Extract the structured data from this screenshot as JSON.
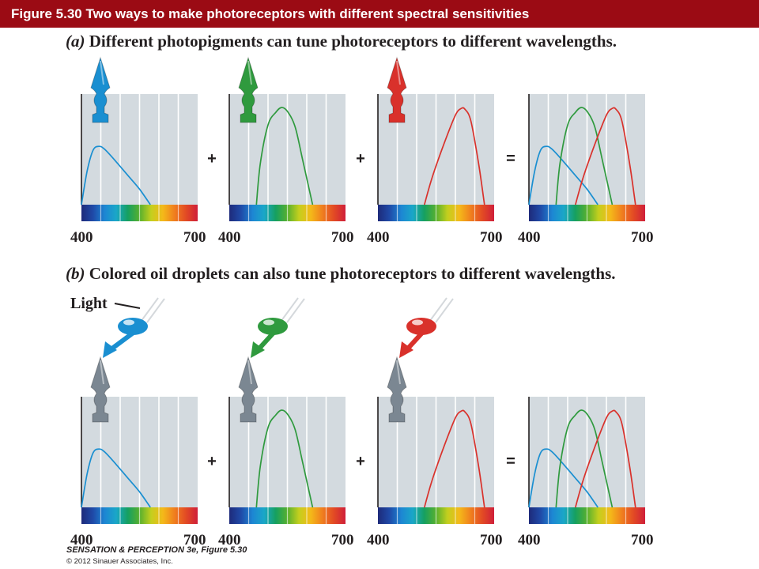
{
  "header": {
    "title": "Figure 5.30  Two ways to make photoreceptors with different spectral sensitivities"
  },
  "part_a": {
    "letter": "(a)",
    "caption": "Different photopigments can tune photoreceptors to different wavelengths."
  },
  "part_b": {
    "letter": "(b)",
    "caption": "Colored oil droplets can also tune photoreceptors to different wavelengths.",
    "light_label": "Light"
  },
  "operators": [
    "+",
    "+",
    "="
  ],
  "axis": {
    "min_label": "400",
    "max_label": "700"
  },
  "colors": {
    "title_bar": "#9b0b14",
    "panel_bg": "#d3dadf",
    "blue": "#1a8fd1",
    "green": "#2f9a3e",
    "red": "#d9312b",
    "gray_receptor": "#7b8792"
  },
  "chart_data": [
    {
      "type": "line",
      "xlim": [
        400,
        700
      ],
      "ylim": [
        0,
        1
      ],
      "series": [
        {
          "values": [
            [
              400,
              0
            ],
            [
              415,
              0.35
            ],
            [
              430,
              0.56
            ],
            [
              445,
              0.6
            ],
            [
              460,
              0.57
            ],
            [
              490,
              0.44
            ],
            [
              520,
              0.3
            ],
            [
              550,
              0.16
            ],
            [
              578,
              0
            ]
          ]
        }
      ]
    },
    {
      "type": "line",
      "xlim": [
        400,
        700
      ],
      "ylim": [
        0,
        1
      ],
      "series": [
        {
          "values": [
            [
              470,
              0
            ],
            [
              480,
              0.42
            ],
            [
              500,
              0.82
            ],
            [
              520,
              0.95
            ],
            [
              535,
              1
            ],
            [
              550,
              0.96
            ],
            [
              570,
              0.8
            ],
            [
              590,
              0.45
            ],
            [
              615,
              0
            ]
          ]
        }
      ]
    },
    {
      "type": "line",
      "xlim": [
        400,
        700
      ],
      "ylim": [
        0,
        1
      ],
      "series": [
        {
          "values": [
            [
              520,
              0
            ],
            [
              540,
              0.28
            ],
            [
              570,
              0.62
            ],
            [
              600,
              0.92
            ],
            [
              615,
              0.99
            ],
            [
              625,
              0.98
            ],
            [
              640,
              0.86
            ],
            [
              660,
              0.42
            ],
            [
              675,
              0
            ]
          ]
        }
      ]
    },
    {
      "type": "line",
      "xlim": [
        400,
        700
      ],
      "ylim": [
        0,
        1
      ],
      "series": [
        {
          "values": [
            [
              400,
              0
            ],
            [
              415,
              0.35
            ],
            [
              430,
              0.56
            ],
            [
              445,
              0.6
            ],
            [
              460,
              0.57
            ],
            [
              490,
              0.44
            ],
            [
              520,
              0.3
            ],
            [
              550,
              0.16
            ],
            [
              578,
              0
            ]
          ]
        },
        {
          "values": [
            [
              470,
              0
            ],
            [
              480,
              0.42
            ],
            [
              500,
              0.82
            ],
            [
              520,
              0.95
            ],
            [
              535,
              1
            ],
            [
              550,
              0.96
            ],
            [
              570,
              0.8
            ],
            [
              590,
              0.45
            ],
            [
              615,
              0
            ]
          ]
        },
        {
          "values": [
            [
              520,
              0
            ],
            [
              540,
              0.28
            ],
            [
              570,
              0.62
            ],
            [
              600,
              0.92
            ],
            [
              615,
              0.99
            ],
            [
              625,
              0.98
            ],
            [
              640,
              0.86
            ],
            [
              660,
              0.42
            ],
            [
              675,
              0
            ]
          ]
        }
      ]
    },
    {
      "type": "line",
      "xlim": [
        400,
        700
      ],
      "ylim": [
        0,
        1
      ],
      "series": [
        {
          "values": [
            [
              400,
              0
            ],
            [
              415,
              0.35
            ],
            [
              430,
              0.56
            ],
            [
              445,
              0.6
            ],
            [
              460,
              0.57
            ],
            [
              490,
              0.44
            ],
            [
              520,
              0.3
            ],
            [
              550,
              0.16
            ],
            [
              578,
              0
            ]
          ]
        }
      ]
    },
    {
      "type": "line",
      "xlim": [
        400,
        700
      ],
      "ylim": [
        0,
        1
      ],
      "series": [
        {
          "values": [
            [
              470,
              0
            ],
            [
              480,
              0.42
            ],
            [
              500,
              0.82
            ],
            [
              520,
              0.95
            ],
            [
              535,
              1
            ],
            [
              550,
              0.96
            ],
            [
              570,
              0.8
            ],
            [
              590,
              0.45
            ],
            [
              615,
              0
            ]
          ]
        }
      ]
    },
    {
      "type": "line",
      "xlim": [
        400,
        700
      ],
      "ylim": [
        0,
        1
      ],
      "series": [
        {
          "values": [
            [
              520,
              0
            ],
            [
              540,
              0.28
            ],
            [
              570,
              0.62
            ],
            [
              600,
              0.92
            ],
            [
              615,
              0.99
            ],
            [
              625,
              0.98
            ],
            [
              640,
              0.86
            ],
            [
              660,
              0.42
            ],
            [
              675,
              0
            ]
          ]
        }
      ]
    },
    {
      "type": "line",
      "xlim": [
        400,
        700
      ],
      "ylim": [
        0,
        1
      ],
      "series": [
        {
          "values": [
            [
              400,
              0
            ],
            [
              415,
              0.35
            ],
            [
              430,
              0.56
            ],
            [
              445,
              0.6
            ],
            [
              460,
              0.57
            ],
            [
              490,
              0.44
            ],
            [
              520,
              0.3
            ],
            [
              550,
              0.16
            ],
            [
              578,
              0
            ]
          ]
        },
        {
          "values": [
            [
              470,
              0
            ],
            [
              480,
              0.42
            ],
            [
              500,
              0.82
            ],
            [
              520,
              0.95
            ],
            [
              535,
              1
            ],
            [
              550,
              0.96
            ],
            [
              570,
              0.8
            ],
            [
              590,
              0.45
            ],
            [
              615,
              0
            ]
          ]
        },
        {
          "values": [
            [
              520,
              0
            ],
            [
              540,
              0.28
            ],
            [
              570,
              0.62
            ],
            [
              600,
              0.92
            ],
            [
              615,
              0.99
            ],
            [
              625,
              0.98
            ],
            [
              640,
              0.86
            ],
            [
              660,
              0.42
            ],
            [
              675,
              0
            ]
          ]
        }
      ]
    }
  ],
  "footer": {
    "credit": "SENSATION & PERCEPTION 3e, Figure 5.30",
    "copyright": "© 2012 Sinauer Associates, Inc."
  }
}
